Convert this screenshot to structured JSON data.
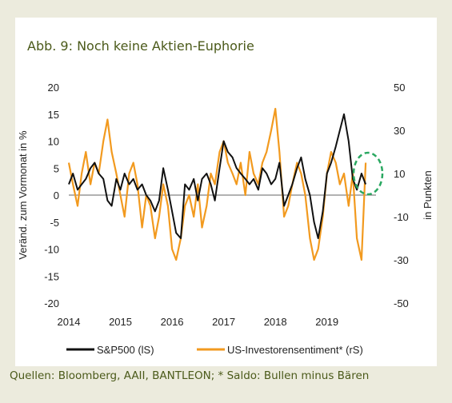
{
  "header": {
    "title": "Abb. 9: Noch keine Aktien-Euphorie"
  },
  "footer": {
    "source": "Quellen: Bloomberg, AAII, BANTLEON; * Saldo: Bullen minus Bären"
  },
  "colors": {
    "sp500": "#111111",
    "sentiment": "#f29a1f",
    "highlight": "#2aa861",
    "background": "#ecebdd",
    "title": "#4b5a1a"
  },
  "chart_data": {
    "type": "line",
    "ylabel_left": "Veränd. zum Vormonat in %",
    "ylabel_right": "in Punkten",
    "ylim_left": [
      -20,
      20
    ],
    "ylim_right": [
      -50,
      50
    ],
    "yticks_left": [
      "20",
      "15",
      "10",
      "5",
      "0",
      "-5",
      "-10",
      "-15",
      "-20"
    ],
    "yticks_right": [
      "50",
      "30",
      "10",
      "-10",
      "-30",
      "-50"
    ],
    "xlim": [
      2014,
      2019.95
    ],
    "xticks": [
      "2014",
      "2015",
      "2016",
      "2017",
      "2018",
      "2019"
    ],
    "grid": false,
    "zero_line": true,
    "legend_position": "bottom",
    "highlight_annotation": "dashed ellipse around latest values (2019)",
    "series": [
      {
        "name": "S&P500 (lS)",
        "axis": "left",
        "x": [
          2014.0,
          2014.08,
          2014.17,
          2014.25,
          2014.33,
          2014.42,
          2014.5,
          2014.58,
          2014.67,
          2014.75,
          2014.83,
          2014.92,
          2015.0,
          2015.08,
          2015.17,
          2015.25,
          2015.33,
          2015.42,
          2015.5,
          2015.58,
          2015.67,
          2015.75,
          2015.83,
          2015.92,
          2016.0,
          2016.08,
          2016.17,
          2016.25,
          2016.33,
          2016.42,
          2016.5,
          2016.58,
          2016.67,
          2016.75,
          2016.83,
          2016.92,
          2017.0,
          2017.08,
          2017.17,
          2017.25,
          2017.33,
          2017.42,
          2017.5,
          2017.58,
          2017.67,
          2017.75,
          2017.83,
          2017.92,
          2018.0,
          2018.08,
          2018.17,
          2018.25,
          2018.33,
          2018.42,
          2018.5,
          2018.58,
          2018.67,
          2018.75,
          2018.83,
          2018.92,
          2019.0,
          2019.08,
          2019.17,
          2019.25,
          2019.33,
          2019.42,
          2019.5,
          2019.58,
          2019.67,
          2019.75
        ],
        "values": [
          2,
          4,
          1,
          2,
          3,
          5,
          6,
          4,
          3,
          -1,
          -2,
          3,
          1,
          4,
          2,
          3,
          1,
          2,
          0,
          -1,
          -3,
          -1,
          5,
          1,
          -3,
          -7,
          -8,
          2,
          1,
          3,
          -1,
          3,
          4,
          2,
          -1,
          5,
          10,
          8,
          7,
          5,
          4,
          3,
          2,
          3,
          1,
          5,
          4,
          2,
          3,
          6,
          -2,
          0,
          2,
          5,
          7,
          3,
          0,
          -5,
          -8,
          -3,
          4,
          6,
          9,
          12,
          15,
          10,
          3,
          1,
          4,
          2
        ]
      },
      {
        "name": "US-Investorensentiment* (rS)",
        "axis": "right",
        "x": [
          2014.0,
          2014.08,
          2014.17,
          2014.25,
          2014.33,
          2014.42,
          2014.5,
          2014.58,
          2014.67,
          2014.75,
          2014.83,
          2014.92,
          2015.0,
          2015.08,
          2015.17,
          2015.25,
          2015.33,
          2015.42,
          2015.5,
          2015.58,
          2015.67,
          2015.75,
          2015.83,
          2015.92,
          2016.0,
          2016.08,
          2016.17,
          2016.25,
          2016.33,
          2016.42,
          2016.5,
          2016.58,
          2016.67,
          2016.75,
          2016.83,
          2016.92,
          2017.0,
          2017.08,
          2017.17,
          2017.25,
          2017.33,
          2017.42,
          2017.5,
          2017.58,
          2017.67,
          2017.75,
          2017.83,
          2017.92,
          2018.0,
          2018.08,
          2018.17,
          2018.25,
          2018.33,
          2018.42,
          2018.5,
          2018.58,
          2018.67,
          2018.75,
          2018.83,
          2018.92,
          2019.0,
          2019.08,
          2019.17,
          2019.25,
          2019.33,
          2019.42,
          2019.5,
          2019.58,
          2019.67,
          2019.75
        ],
        "values": [
          15,
          5,
          -5,
          10,
          20,
          5,
          15,
          10,
          25,
          35,
          20,
          10,
          0,
          -10,
          10,
          15,
          5,
          -15,
          0,
          -5,
          -20,
          -10,
          5,
          -5,
          -25,
          -30,
          -20,
          -5,
          0,
          -10,
          5,
          -15,
          -5,
          10,
          5,
          20,
          25,
          15,
          10,
          5,
          15,
          0,
          20,
          10,
          5,
          15,
          20,
          30,
          40,
          20,
          -10,
          -5,
          5,
          15,
          10,
          0,
          -20,
          -30,
          -25,
          -10,
          10,
          20,
          15,
          5,
          10,
          -5,
          10,
          -20,
          -30,
          15
        ]
      }
    ]
  }
}
